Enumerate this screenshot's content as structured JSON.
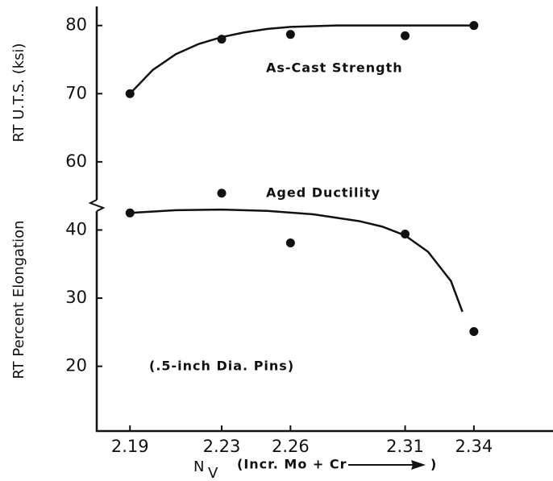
{
  "chart_data": {
    "type": "scatter",
    "ylabel": "RT U.T.S. (ksi)",
    "y2label": "RT Percent Elongation",
    "xlabel": {
      "main": "N",
      "sub": "V",
      "note": "(Incr. Mo + Cr",
      "note_end": ")"
    },
    "annotation": "(.5-inch Dia. Pins)",
    "xlim": [
      2.1755,
      2.3745
    ],
    "xticks": [
      2.19,
      2.23,
      2.26,
      2.31,
      2.34
    ],
    "ylim": [
      20.5,
      82.8
    ],
    "yticks": [
      60,
      70,
      80
    ],
    "y2lim": [
      10.5,
      72.8
    ],
    "y2ticks": [
      20,
      30,
      40
    ],
    "series": [
      {
        "name": "As-Cast Strength",
        "color": "#111111",
        "x": [
          2.19,
          2.23,
          2.26,
          2.31,
          2.34
        ],
        "values": [
          70,
          78,
          78.7,
          78.5,
          80
        ],
        "fit_x": [
          2.19,
          2.2,
          2.21,
          2.22,
          2.23,
          2.24,
          2.25,
          2.26,
          2.28,
          2.31,
          2.34
        ],
        "fit_values": [
          70,
          73.5,
          75.8,
          77.3,
          78.3,
          79,
          79.5,
          79.8,
          80,
          80,
          80
        ]
      },
      {
        "name": "Aged Ductility",
        "color": "#111111",
        "axis": "y2",
        "x": [
          2.19,
          2.23,
          2.26,
          2.31,
          2.34
        ],
        "values": [
          42.5,
          45.4,
          38.1,
          39.4,
          25.1
        ],
        "fit_x": [
          2.19,
          2.21,
          2.23,
          2.25,
          2.27,
          2.29,
          2.3,
          2.31,
          2.32,
          2.33,
          2.335
        ],
        "fit_values": [
          42.5,
          42.9,
          43,
          42.8,
          42.3,
          41.3,
          40.5,
          39.2,
          36.8,
          32.5,
          28
        ]
      }
    ]
  }
}
